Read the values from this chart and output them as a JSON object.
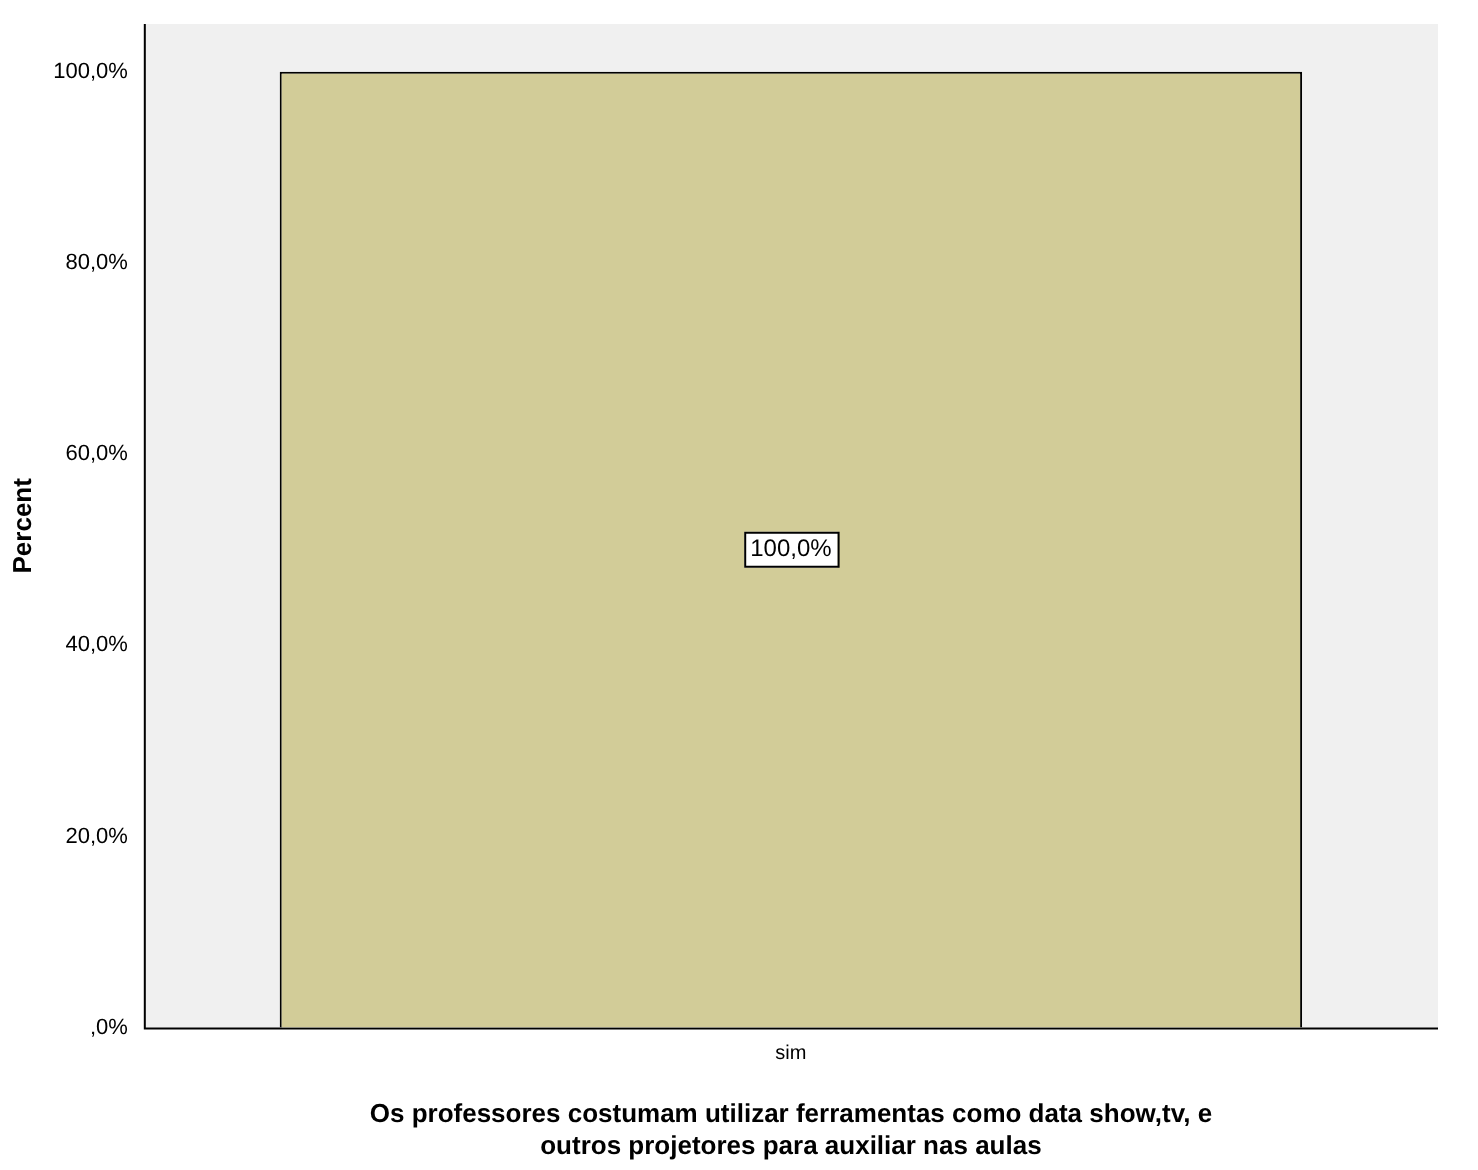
{
  "chart_data": {
    "type": "bar",
    "xlabel": "Os professores costumam utilizar ferramentas como data show,tv, e\noutros projetores para auxiliar nas aulas",
    "ylabel": "Percent",
    "categories": [
      "sim"
    ],
    "values": [
      100
    ],
    "color": "#d2cc98",
    "value_labels": [
      "100,0%"
    ],
    "ylim": [
      0,
      105
    ],
    "yticks": [
      {
        "value": 0,
        "label": ",0%"
      },
      {
        "value": 20,
        "label": "20,0%"
      },
      {
        "value": 40,
        "label": "40,0%"
      },
      {
        "value": 60,
        "label": "60,0%"
      },
      {
        "value": 80,
        "label": "80,0%"
      },
      {
        "value": 100,
        "label": "100,0%"
      }
    ],
    "grid": false,
    "legend": false
  }
}
